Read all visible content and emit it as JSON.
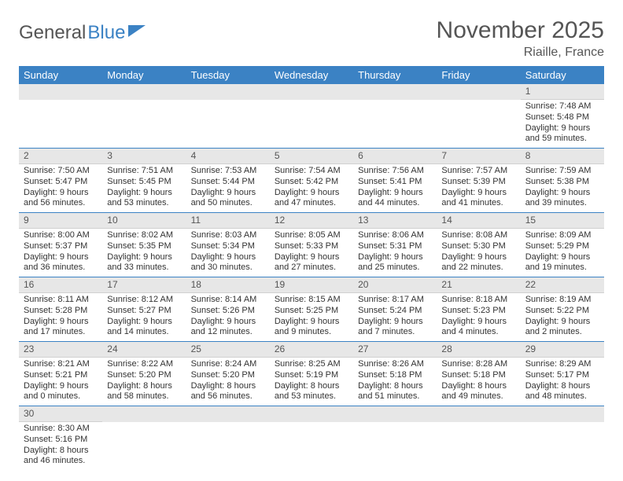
{
  "brand": {
    "part1": "General",
    "part2": "Blue"
  },
  "header": {
    "month": "November 2025",
    "location": "Riaille, France"
  },
  "colors": {
    "accent": "#3b82c4",
    "dayHeaderBg": "#e7e7e7",
    "text": "#333333"
  },
  "weekdays": [
    "Sunday",
    "Monday",
    "Tuesday",
    "Wednesday",
    "Thursday",
    "Friday",
    "Saturday"
  ],
  "layout": {
    "firstDayOffset": 6,
    "daysInMonth": 30
  },
  "days": {
    "1": {
      "sunrise": "Sunrise: 7:48 AM",
      "sunset": "Sunset: 5:48 PM",
      "daylight": "Daylight: 9 hours and 59 minutes."
    },
    "2": {
      "sunrise": "Sunrise: 7:50 AM",
      "sunset": "Sunset: 5:47 PM",
      "daylight": "Daylight: 9 hours and 56 minutes."
    },
    "3": {
      "sunrise": "Sunrise: 7:51 AM",
      "sunset": "Sunset: 5:45 PM",
      "daylight": "Daylight: 9 hours and 53 minutes."
    },
    "4": {
      "sunrise": "Sunrise: 7:53 AM",
      "sunset": "Sunset: 5:44 PM",
      "daylight": "Daylight: 9 hours and 50 minutes."
    },
    "5": {
      "sunrise": "Sunrise: 7:54 AM",
      "sunset": "Sunset: 5:42 PM",
      "daylight": "Daylight: 9 hours and 47 minutes."
    },
    "6": {
      "sunrise": "Sunrise: 7:56 AM",
      "sunset": "Sunset: 5:41 PM",
      "daylight": "Daylight: 9 hours and 44 minutes."
    },
    "7": {
      "sunrise": "Sunrise: 7:57 AM",
      "sunset": "Sunset: 5:39 PM",
      "daylight": "Daylight: 9 hours and 41 minutes."
    },
    "8": {
      "sunrise": "Sunrise: 7:59 AM",
      "sunset": "Sunset: 5:38 PM",
      "daylight": "Daylight: 9 hours and 39 minutes."
    },
    "9": {
      "sunrise": "Sunrise: 8:00 AM",
      "sunset": "Sunset: 5:37 PM",
      "daylight": "Daylight: 9 hours and 36 minutes."
    },
    "10": {
      "sunrise": "Sunrise: 8:02 AM",
      "sunset": "Sunset: 5:35 PM",
      "daylight": "Daylight: 9 hours and 33 minutes."
    },
    "11": {
      "sunrise": "Sunrise: 8:03 AM",
      "sunset": "Sunset: 5:34 PM",
      "daylight": "Daylight: 9 hours and 30 minutes."
    },
    "12": {
      "sunrise": "Sunrise: 8:05 AM",
      "sunset": "Sunset: 5:33 PM",
      "daylight": "Daylight: 9 hours and 27 minutes."
    },
    "13": {
      "sunrise": "Sunrise: 8:06 AM",
      "sunset": "Sunset: 5:31 PM",
      "daylight": "Daylight: 9 hours and 25 minutes."
    },
    "14": {
      "sunrise": "Sunrise: 8:08 AM",
      "sunset": "Sunset: 5:30 PM",
      "daylight": "Daylight: 9 hours and 22 minutes."
    },
    "15": {
      "sunrise": "Sunrise: 8:09 AM",
      "sunset": "Sunset: 5:29 PM",
      "daylight": "Daylight: 9 hours and 19 minutes."
    },
    "16": {
      "sunrise": "Sunrise: 8:11 AM",
      "sunset": "Sunset: 5:28 PM",
      "daylight": "Daylight: 9 hours and 17 minutes."
    },
    "17": {
      "sunrise": "Sunrise: 8:12 AM",
      "sunset": "Sunset: 5:27 PM",
      "daylight": "Daylight: 9 hours and 14 minutes."
    },
    "18": {
      "sunrise": "Sunrise: 8:14 AM",
      "sunset": "Sunset: 5:26 PM",
      "daylight": "Daylight: 9 hours and 12 minutes."
    },
    "19": {
      "sunrise": "Sunrise: 8:15 AM",
      "sunset": "Sunset: 5:25 PM",
      "daylight": "Daylight: 9 hours and 9 minutes."
    },
    "20": {
      "sunrise": "Sunrise: 8:17 AM",
      "sunset": "Sunset: 5:24 PM",
      "daylight": "Daylight: 9 hours and 7 minutes."
    },
    "21": {
      "sunrise": "Sunrise: 8:18 AM",
      "sunset": "Sunset: 5:23 PM",
      "daylight": "Daylight: 9 hours and 4 minutes."
    },
    "22": {
      "sunrise": "Sunrise: 8:19 AM",
      "sunset": "Sunset: 5:22 PM",
      "daylight": "Daylight: 9 hours and 2 minutes."
    },
    "23": {
      "sunrise": "Sunrise: 8:21 AM",
      "sunset": "Sunset: 5:21 PM",
      "daylight": "Daylight: 9 hours and 0 minutes."
    },
    "24": {
      "sunrise": "Sunrise: 8:22 AM",
      "sunset": "Sunset: 5:20 PM",
      "daylight": "Daylight: 8 hours and 58 minutes."
    },
    "25": {
      "sunrise": "Sunrise: 8:24 AM",
      "sunset": "Sunset: 5:20 PM",
      "daylight": "Daylight: 8 hours and 56 minutes."
    },
    "26": {
      "sunrise": "Sunrise: 8:25 AM",
      "sunset": "Sunset: 5:19 PM",
      "daylight": "Daylight: 8 hours and 53 minutes."
    },
    "27": {
      "sunrise": "Sunrise: 8:26 AM",
      "sunset": "Sunset: 5:18 PM",
      "daylight": "Daylight: 8 hours and 51 minutes."
    },
    "28": {
      "sunrise": "Sunrise: 8:28 AM",
      "sunset": "Sunset: 5:18 PM",
      "daylight": "Daylight: 8 hours and 49 minutes."
    },
    "29": {
      "sunrise": "Sunrise: 8:29 AM",
      "sunset": "Sunset: 5:17 PM",
      "daylight": "Daylight: 8 hours and 48 minutes."
    },
    "30": {
      "sunrise": "Sunrise: 8:30 AM",
      "sunset": "Sunset: 5:16 PM",
      "daylight": "Daylight: 8 hours and 46 minutes."
    }
  }
}
